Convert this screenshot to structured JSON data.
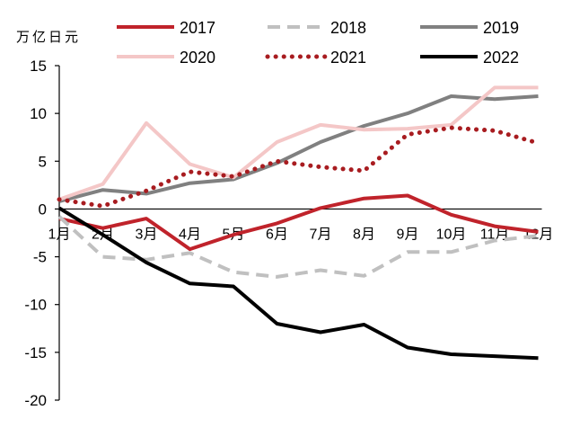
{
  "chart_data": {
    "type": "line",
    "ylabel": "万亿日元",
    "ylim": [
      -20,
      15
    ],
    "yticks": [
      15,
      10,
      5,
      0,
      -5,
      -10,
      -15,
      -20
    ],
    "ytick_labels": [
      "15",
      "10",
      "5",
      "0",
      "-5",
      "-10",
      "-15",
      "-20"
    ],
    "categories": [
      "1月",
      "2月",
      "3月",
      "4月",
      "5月",
      "6月",
      "7月",
      "8月",
      "9月",
      "10月",
      "11月",
      "12月"
    ],
    "legend_position": "top",
    "series": [
      {
        "name": "2017",
        "color": "#c0232b",
        "style": "solid",
        "values": [
          -1.0,
          -2.0,
          -1.0,
          -4.2,
          -2.7,
          -1.5,
          0.1,
          1.1,
          1.4,
          -0.6,
          -1.8,
          -2.4
        ]
      },
      {
        "name": "2018",
        "color": "#c0c0c0",
        "style": "dashed",
        "values": [
          -0.8,
          -5.0,
          -5.3,
          -4.6,
          -6.6,
          -7.1,
          -6.4,
          -7.0,
          -4.5,
          -4.5,
          -3.3,
          -2.8
        ]
      },
      {
        "name": "2019",
        "color": "#808080",
        "style": "solid",
        "values": [
          0.8,
          2.0,
          1.6,
          2.7,
          3.1,
          4.8,
          7.0,
          8.7,
          10.0,
          11.8,
          11.5,
          11.8
        ]
      },
      {
        "name": "2020",
        "color": "#f4c7c7",
        "style": "solid",
        "values": [
          1.0,
          2.6,
          9.0,
          4.7,
          3.3,
          7.0,
          8.8,
          8.3,
          8.4,
          8.8,
          12.7,
          12.7
        ]
      },
      {
        "name": "2021",
        "color": "#a81c20",
        "style": "dotted",
        "values": [
          1.0,
          0.3,
          1.9,
          3.9,
          3.4,
          5.0,
          4.4,
          4.0,
          7.8,
          8.5,
          8.2,
          6.9
        ]
      },
      {
        "name": "2022",
        "color": "#000000",
        "style": "solid",
        "values": [
          0.1,
          -2.7,
          -5.6,
          -7.8,
          -8.1,
          -12.0,
          -12.9,
          -12.1,
          -14.5,
          -15.2,
          -15.4,
          -15.6
        ]
      }
    ]
  }
}
